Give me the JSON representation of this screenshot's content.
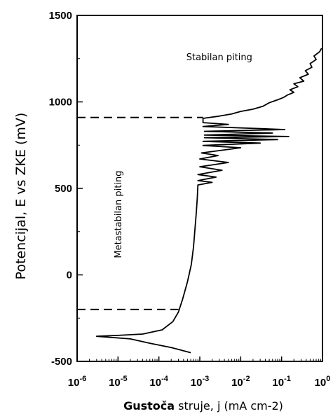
{
  "chart_data": {
    "type": "line",
    "xscale": "log",
    "xlim": [
      1e-06,
      1
    ],
    "ylim": [
      -500,
      1500
    ],
    "x_ticks": [
      1e-06,
      1e-05,
      0.0001,
      0.001,
      0.01,
      0.1,
      1
    ],
    "x_tick_labels": [
      {
        "base": "10",
        "exp": "-6"
      },
      {
        "base": "10",
        "exp": "-5"
      },
      {
        "base": "10",
        "exp": "-4"
      },
      {
        "base": "10",
        "exp": "-3"
      },
      {
        "base": "10",
        "exp": "-2"
      },
      {
        "base": "10",
        "exp": "-1"
      },
      {
        "base": "10",
        "exp": "0"
      }
    ],
    "y_ticks": [
      -500,
      0,
      500,
      1000,
      1500
    ],
    "y_tick_labels": [
      "-500",
      "0",
      "500",
      "1000",
      "1500"
    ],
    "ylabel": "Potencijal, E vs ZKE (mV)",
    "xlabel_bold": "Gustoča",
    "xlabel_rest": " struje, j (mA cm-2)",
    "annotations": [
      {
        "text": "Stabilan piting",
        "x": 0.003,
        "y": 1240
      },
      {
        "text": "Metastabilan piting",
        "x": 1.2e-05,
        "y": 350,
        "rotate": -90
      }
    ],
    "reference_lines": [
      {
        "y": 910,
        "x_from": 1e-06,
        "x_to": 0.0012,
        "style": "dashed"
      },
      {
        "y": -200,
        "x_from": 1e-06,
        "x_to": 0.0003,
        "style": "dashed"
      }
    ],
    "series": [
      {
        "points": [
          [
            0.0006,
            -450
          ],
          [
            0.0002,
            -420
          ],
          [
            6e-05,
            -395
          ],
          [
            2e-05,
            -370
          ],
          [
            3e-06,
            -355
          ],
          [
            1e-05,
            -350
          ],
          [
            4e-05,
            -342
          ],
          [
            0.00012,
            -318
          ],
          [
            0.00022,
            -270
          ],
          [
            0.0003,
            -215
          ],
          [
            0.00038,
            -140
          ],
          [
            0.0005,
            -40
          ],
          [
            0.00062,
            60
          ],
          [
            0.0007,
            160
          ],
          [
            0.00076,
            260
          ],
          [
            0.00082,
            360
          ],
          [
            0.00087,
            450
          ],
          [
            0.0009,
            520
          ],
          [
            0.002,
            535
          ],
          [
            0.0009,
            545
          ],
          [
            0.0025,
            565
          ],
          [
            0.0009,
            580
          ],
          [
            0.0035,
            605
          ],
          [
            0.001,
            625
          ],
          [
            0.005,
            650
          ],
          [
            0.001,
            670
          ],
          [
            0.0028,
            690
          ],
          [
            0.0011,
            705
          ],
          [
            0.01,
            735
          ],
          [
            0.0012,
            748
          ],
          [
            0.03,
            762
          ],
          [
            0.0012,
            772
          ],
          [
            0.08,
            782
          ],
          [
            0.0013,
            793
          ],
          [
            0.15,
            800
          ],
          [
            0.0013,
            808
          ],
          [
            0.06,
            820
          ],
          [
            0.0013,
            830
          ],
          [
            0.12,
            840
          ],
          [
            0.0012,
            858
          ],
          [
            0.005,
            870
          ],
          [
            0.0012,
            880
          ],
          [
            0.0012,
            905
          ],
          [
            0.003,
            918
          ],
          [
            0.006,
            930
          ],
          [
            0.01,
            945
          ],
          [
            0.02,
            958
          ],
          [
            0.035,
            975
          ],
          [
            0.05,
            995
          ],
          [
            0.08,
            1012
          ],
          [
            0.11,
            1025
          ],
          [
            0.14,
            1040
          ],
          [
            0.2,
            1055
          ],
          [
            0.16,
            1070
          ],
          [
            0.25,
            1088
          ],
          [
            0.2,
            1105
          ],
          [
            0.35,
            1120
          ],
          [
            0.28,
            1140
          ],
          [
            0.45,
            1160
          ],
          [
            0.38,
            1180
          ],
          [
            0.55,
            1200
          ],
          [
            0.5,
            1222
          ],
          [
            0.7,
            1245
          ],
          [
            0.62,
            1265
          ],
          [
            0.85,
            1290
          ],
          [
            0.95,
            1310
          ]
        ]
      }
    ]
  }
}
